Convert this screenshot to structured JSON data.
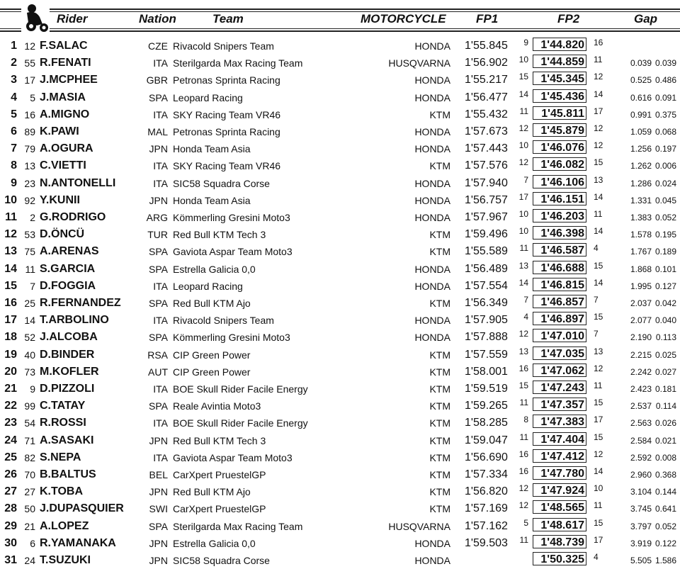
{
  "header": {
    "rider": "Rider",
    "nation": "Nation",
    "team": "Team",
    "motorcycle": "MOTORCYCLE",
    "fp1": "FP1",
    "fp2": "FP2",
    "gap": "Gap"
  },
  "rows": [
    {
      "pos": "1",
      "num": "12",
      "name": "F.SALAC",
      "nation": "CZE",
      "team": "Rivacold Snipers Team",
      "moto": "HONDA",
      "fp1": "1'55.845",
      "fp1_lap": "9",
      "fp2": "1'44.820",
      "fp2_lap": "16",
      "gap": "",
      "prev": ""
    },
    {
      "pos": "2",
      "num": "55",
      "name": "R.FENATI",
      "nation": "ITA",
      "team": "Sterilgarda Max Racing Team",
      "moto": "HUSQVARNA",
      "fp1": "1'56.902",
      "fp1_lap": "10",
      "fp2": "1'44.859",
      "fp2_lap": "11",
      "gap": "0.039",
      "prev": "0.039"
    },
    {
      "pos": "3",
      "num": "17",
      "name": "J.MCPHEE",
      "nation": "GBR",
      "team": "Petronas Sprinta Racing",
      "moto": "HONDA",
      "fp1": "1'55.217",
      "fp1_lap": "15",
      "fp2": "1'45.345",
      "fp2_lap": "12",
      "gap": "0.525",
      "prev": "0.486"
    },
    {
      "pos": "4",
      "num": "5",
      "name": "J.MASIA",
      "nation": "SPA",
      "team": "Leopard Racing",
      "moto": "HONDA",
      "fp1": "1'56.477",
      "fp1_lap": "14",
      "fp2": "1'45.436",
      "fp2_lap": "14",
      "gap": "0.616",
      "prev": "0.091"
    },
    {
      "pos": "5",
      "num": "16",
      "name": "A.MIGNO",
      "nation": "ITA",
      "team": "SKY Racing Team VR46",
      "moto": "KTM",
      "fp1": "1'55.432",
      "fp1_lap": "11",
      "fp2": "1'45.811",
      "fp2_lap": "17",
      "gap": "0.991",
      "prev": "0.375"
    },
    {
      "pos": "6",
      "num": "89",
      "name": "K.PAWI",
      "nation": "MAL",
      "team": "Petronas Sprinta Racing",
      "moto": "HONDA",
      "fp1": "1'57.673",
      "fp1_lap": "12",
      "fp2": "1'45.879",
      "fp2_lap": "12",
      "gap": "1.059",
      "prev": "0.068"
    },
    {
      "pos": "7",
      "num": "79",
      "name": "A.OGURA",
      "nation": "JPN",
      "team": "Honda Team Asia",
      "moto": "HONDA",
      "fp1": "1'57.443",
      "fp1_lap": "10",
      "fp2": "1'46.076",
      "fp2_lap": "12",
      "gap": "1.256",
      "prev": "0.197"
    },
    {
      "pos": "8",
      "num": "13",
      "name": "C.VIETTI",
      "nation": "ITA",
      "team": "SKY Racing Team VR46",
      "moto": "KTM",
      "fp1": "1'57.576",
      "fp1_lap": "12",
      "fp2": "1'46.082",
      "fp2_lap": "15",
      "gap": "1.262",
      "prev": "0.006"
    },
    {
      "pos": "9",
      "num": "23",
      "name": "N.ANTONELLI",
      "nation": "ITA",
      "team": "SIC58 Squadra Corse",
      "moto": "HONDA",
      "fp1": "1'57.940",
      "fp1_lap": "7",
      "fp2": "1'46.106",
      "fp2_lap": "13",
      "gap": "1.286",
      "prev": "0.024"
    },
    {
      "pos": "10",
      "num": "92",
      "name": "Y.KUNII",
      "nation": "JPN",
      "team": "Honda Team Asia",
      "moto": "HONDA",
      "fp1": "1'56.757",
      "fp1_lap": "17",
      "fp2": "1'46.151",
      "fp2_lap": "14",
      "gap": "1.331",
      "prev": "0.045"
    },
    {
      "pos": "11",
      "num": "2",
      "name": "G.RODRIGO",
      "nation": "ARG",
      "team": "Kömmerling Gresini Moto3",
      "moto": "HONDA",
      "fp1": "1'57.967",
      "fp1_lap": "10",
      "fp2": "1'46.203",
      "fp2_lap": "11",
      "gap": "1.383",
      "prev": "0.052"
    },
    {
      "pos": "12",
      "num": "53",
      "name": "D.ÖNCÜ",
      "nation": "TUR",
      "team": "Red Bull KTM Tech 3",
      "moto": "KTM",
      "fp1": "1'59.496",
      "fp1_lap": "10",
      "fp2": "1'46.398",
      "fp2_lap": "14",
      "gap": "1.578",
      "prev": "0.195"
    },
    {
      "pos": "13",
      "num": "75",
      "name": "A.ARENAS",
      "nation": "SPA",
      "team": "Gaviota Aspar Team Moto3",
      "moto": "KTM",
      "fp1": "1'55.589",
      "fp1_lap": "11",
      "fp2": "1'46.587",
      "fp2_lap": "4",
      "gap": "1.767",
      "prev": "0.189"
    },
    {
      "pos": "14",
      "num": "11",
      "name": "S.GARCIA",
      "nation": "SPA",
      "team": "Estrella Galicia 0,0",
      "moto": "HONDA",
      "fp1": "1'56.489",
      "fp1_lap": "13",
      "fp2": "1'46.688",
      "fp2_lap": "15",
      "gap": "1.868",
      "prev": "0.101"
    },
    {
      "pos": "15",
      "num": "7",
      "name": "D.FOGGIA",
      "nation": "ITA",
      "team": "Leopard Racing",
      "moto": "HONDA",
      "fp1": "1'57.554",
      "fp1_lap": "14",
      "fp2": "1'46.815",
      "fp2_lap": "14",
      "gap": "1.995",
      "prev": "0.127"
    },
    {
      "pos": "16",
      "num": "25",
      "name": "R.FERNANDEZ",
      "nation": "SPA",
      "team": "Red Bull KTM Ajo",
      "moto": "KTM",
      "fp1": "1'56.349",
      "fp1_lap": "7",
      "fp2": "1'46.857",
      "fp2_lap": "7",
      "gap": "2.037",
      "prev": "0.042"
    },
    {
      "pos": "17",
      "num": "14",
      "name": "T.ARBOLINO",
      "nation": "ITA",
      "team": "Rivacold Snipers Team",
      "moto": "HONDA",
      "fp1": "1'57.905",
      "fp1_lap": "4",
      "fp2": "1'46.897",
      "fp2_lap": "15",
      "gap": "2.077",
      "prev": "0.040"
    },
    {
      "pos": "18",
      "num": "52",
      "name": "J.ALCOBA",
      "nation": "SPA",
      "team": "Kömmerling Gresini Moto3",
      "moto": "HONDA",
      "fp1": "1'57.888",
      "fp1_lap": "12",
      "fp2": "1'47.010",
      "fp2_lap": "7",
      "gap": "2.190",
      "prev": "0.113"
    },
    {
      "pos": "19",
      "num": "40",
      "name": "D.BINDER",
      "nation": "RSA",
      "team": "CIP Green Power",
      "moto": "KTM",
      "fp1": "1'57.559",
      "fp1_lap": "13",
      "fp2": "1'47.035",
      "fp2_lap": "13",
      "gap": "2.215",
      "prev": "0.025"
    },
    {
      "pos": "20",
      "num": "73",
      "name": "M.KOFLER",
      "nation": "AUT",
      "team": "CIP Green Power",
      "moto": "KTM",
      "fp1": "1'58.001",
      "fp1_lap": "16",
      "fp2": "1'47.062",
      "fp2_lap": "12",
      "gap": "2.242",
      "prev": "0.027"
    },
    {
      "pos": "21",
      "num": "9",
      "name": "D.PIZZOLI",
      "nation": "ITA",
      "team": "BOE Skull Rider Facile Energy",
      "moto": "KTM",
      "fp1": "1'59.519",
      "fp1_lap": "15",
      "fp2": "1'47.243",
      "fp2_lap": "11",
      "gap": "2.423",
      "prev": "0.181"
    },
    {
      "pos": "22",
      "num": "99",
      "name": "C.TATAY",
      "nation": "SPA",
      "team": "Reale Avintia Moto3",
      "moto": "KTM",
      "fp1": "1'59.265",
      "fp1_lap": "11",
      "fp2": "1'47.357",
      "fp2_lap": "15",
      "gap": "2.537",
      "prev": "0.114"
    },
    {
      "pos": "23",
      "num": "54",
      "name": "R.ROSSI",
      "nation": "ITA",
      "team": "BOE Skull Rider Facile Energy",
      "moto": "KTM",
      "fp1": "1'58.285",
      "fp1_lap": "8",
      "fp2": "1'47.383",
      "fp2_lap": "17",
      "gap": "2.563",
      "prev": "0.026"
    },
    {
      "pos": "24",
      "num": "71",
      "name": "A.SASAKI",
      "nation": "JPN",
      "team": "Red Bull KTM Tech 3",
      "moto": "KTM",
      "fp1": "1'59.047",
      "fp1_lap": "11",
      "fp2": "1'47.404",
      "fp2_lap": "15",
      "gap": "2.584",
      "prev": "0.021"
    },
    {
      "pos": "25",
      "num": "82",
      "name": "S.NEPA",
      "nation": "ITA",
      "team": "Gaviota Aspar Team Moto3",
      "moto": "KTM",
      "fp1": "1'56.690",
      "fp1_lap": "16",
      "fp2": "1'47.412",
      "fp2_lap": "12",
      "gap": "2.592",
      "prev": "0.008"
    },
    {
      "pos": "26",
      "num": "70",
      "name": "B.BALTUS",
      "nation": "BEL",
      "team": "CarXpert PruestelGP",
      "moto": "KTM",
      "fp1": "1'57.334",
      "fp1_lap": "16",
      "fp2": "1'47.780",
      "fp2_lap": "14",
      "gap": "2.960",
      "prev": "0.368"
    },
    {
      "pos": "27",
      "num": "27",
      "name": "K.TOBA",
      "nation": "JPN",
      "team": "Red Bull KTM Ajo",
      "moto": "KTM",
      "fp1": "1'56.820",
      "fp1_lap": "12",
      "fp2": "1'47.924",
      "fp2_lap": "10",
      "gap": "3.104",
      "prev": "0.144"
    },
    {
      "pos": "28",
      "num": "50",
      "name": "J.DUPASQUIER",
      "nation": "SWI",
      "team": "CarXpert PruestelGP",
      "moto": "KTM",
      "fp1": "1'57.169",
      "fp1_lap": "12",
      "fp2": "1'48.565",
      "fp2_lap": "11",
      "gap": "3.745",
      "prev": "0.641"
    },
    {
      "pos": "29",
      "num": "21",
      "name": "A.LOPEZ",
      "nation": "SPA",
      "team": "Sterilgarda Max Racing Team",
      "moto": "HUSQVARNA",
      "fp1": "1'57.162",
      "fp1_lap": "5",
      "fp2": "1'48.617",
      "fp2_lap": "15",
      "gap": "3.797",
      "prev": "0.052"
    },
    {
      "pos": "30",
      "num": "6",
      "name": "R.YAMANAKA",
      "nation": "JPN",
      "team": "Estrella Galicia 0,0",
      "moto": "HONDA",
      "fp1": "1'59.503",
      "fp1_lap": "11",
      "fp2": "1'48.739",
      "fp2_lap": "17",
      "gap": "3.919",
      "prev": "0.122"
    },
    {
      "pos": "31",
      "num": "24",
      "name": "T.SUZUKI",
      "nation": "JPN",
      "team": "SIC58 Squadra Corse",
      "moto": "HONDA",
      "fp1": "",
      "fp1_lap": "",
      "fp2": "1'50.325",
      "fp2_lap": "4",
      "gap": "5.505",
      "prev": "1.586"
    }
  ]
}
